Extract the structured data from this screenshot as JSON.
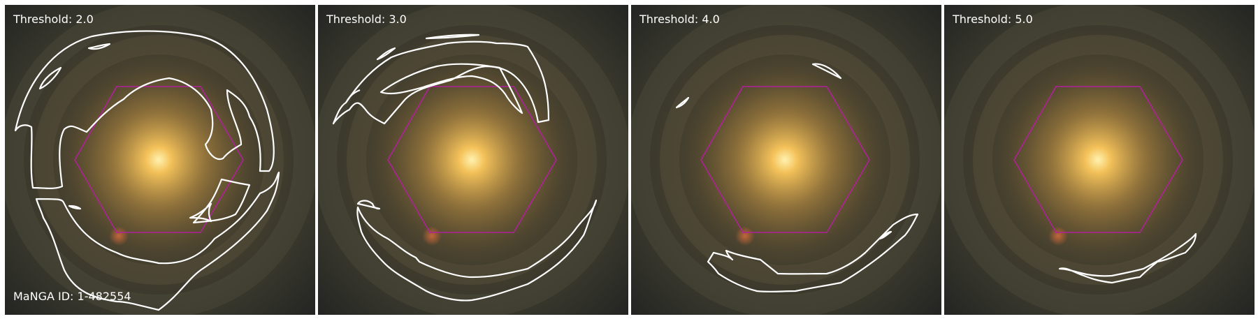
{
  "figure": {
    "galaxy_id_label": "MaNGA ID: 1-482554",
    "panels": [
      {
        "threshold_label": "Threshold: 2.0"
      },
      {
        "threshold_label": "Threshold: 3.0"
      },
      {
        "threshold_label": "Threshold: 4.0"
      },
      {
        "threshold_label": "Threshold: 5.0"
      }
    ]
  },
  "colors": {
    "contour": "#ffffff",
    "ifu_hexagon": "#b0209a",
    "galaxy_core": "#ffe08a",
    "sky_background": "#2f2e27"
  }
}
